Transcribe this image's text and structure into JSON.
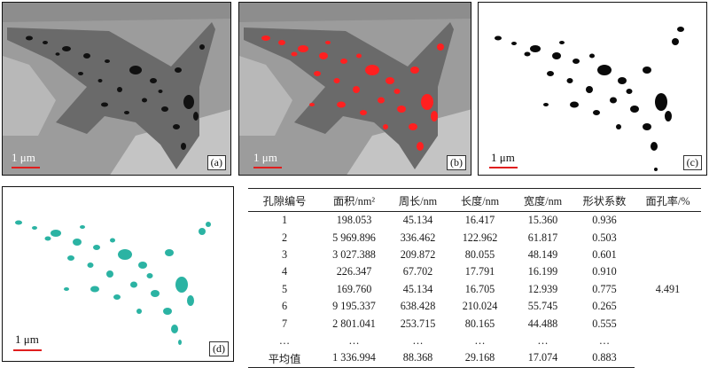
{
  "figure": {
    "panels": [
      {
        "label": "(a)",
        "scale": "1 μm",
        "kind": "sem-grayscale"
      },
      {
        "label": "(b)",
        "scale": "1 μm",
        "kind": "sem-red-pores"
      },
      {
        "label": "(c)",
        "scale": "1 μm",
        "kind": "binary-black-pores"
      },
      {
        "label": "(d)",
        "scale": "1 μm",
        "kind": "teal-3d-pores"
      }
    ],
    "colors": {
      "scale_bar": "#e01e1e",
      "pore_red": "#ff2020",
      "pore_teal": "#2bb3a3"
    }
  },
  "table": {
    "headers": [
      "孔隙编号",
      "面积/nm²",
      "周长/nm",
      "长度/nm",
      "宽度/nm",
      "形状系数",
      "面孔率/%"
    ],
    "rows": [
      [
        "1",
        "198.053",
        "45.134",
        "16.417",
        "15.360",
        "0.936"
      ],
      [
        "2",
        "5 969.896",
        "336.462",
        "122.962",
        "61.817",
        "0.503"
      ],
      [
        "3",
        "3 027.388",
        "209.872",
        "80.055",
        "48.149",
        "0.601"
      ],
      [
        "4",
        "226.347",
        "67.702",
        "17.791",
        "16.199",
        "0.910"
      ],
      [
        "5",
        "169.760",
        "45.134",
        "16.705",
        "12.939",
        "0.775"
      ],
      [
        "6",
        "9 195.337",
        "638.428",
        "210.024",
        "55.745",
        "0.265"
      ],
      [
        "7",
        "2 801.041",
        "253.715",
        "80.165",
        "44.488",
        "0.555"
      ],
      [
        "…",
        "…",
        "…",
        "…",
        "…",
        "…"
      ],
      [
        "平均值",
        "1 336.994",
        "88.368",
        "29.168",
        "17.074",
        "0.883"
      ]
    ],
    "porosity": "4.491"
  }
}
